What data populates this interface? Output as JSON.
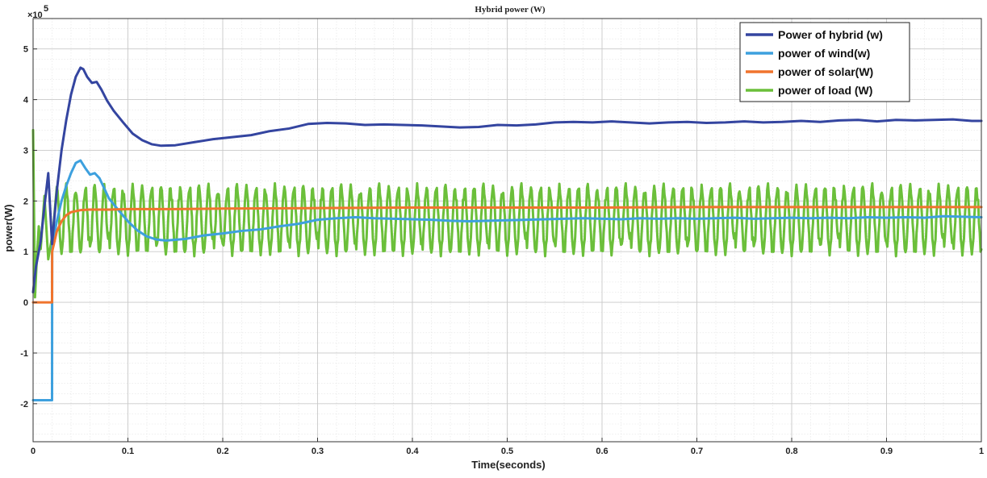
{
  "chart_data": {
    "type": "line",
    "title": "Hybrid power (W)",
    "xlabel": "Time(seconds)",
    "ylabel": "power(W)",
    "y_exponent_label": "×10",
    "y_exponent_power": "5",
    "xlim": [
      0,
      1
    ],
    "ylim": [
      -2.75,
      5.6
    ],
    "x_ticks": [
      0,
      0.1,
      0.2,
      0.3,
      0.4,
      0.5,
      0.6,
      0.7,
      0.8,
      0.9,
      1
    ],
    "x_tick_labels": [
      "0",
      "0.1",
      "0.2",
      "0.3",
      "0.4",
      "0.5",
      "0.6",
      "0.7",
      "0.8",
      "0.9",
      "1"
    ],
    "y_ticks": [
      -2,
      -1,
      0,
      1,
      2,
      3,
      4,
      5
    ],
    "y_tick_labels": [
      "-2",
      "-1",
      "0",
      "1",
      "2",
      "3",
      "4",
      "5"
    ],
    "grid": true,
    "minor_grid": true,
    "legend_position": "top-right",
    "series": [
      {
        "name": "Power of hybrid (w)",
        "color": "#3445a0",
        "points": [
          [
            0,
            0.2
          ],
          [
            0.003,
            0.7
          ],
          [
            0.008,
            1.2
          ],
          [
            0.012,
            1.9
          ],
          [
            0.016,
            2.55
          ],
          [
            0.02,
            1.15
          ],
          [
            0.025,
            2.2
          ],
          [
            0.03,
            3.0
          ],
          [
            0.035,
            3.6
          ],
          [
            0.04,
            4.1
          ],
          [
            0.045,
            4.45
          ],
          [
            0.05,
            4.63
          ],
          [
            0.053,
            4.6
          ],
          [
            0.057,
            4.45
          ],
          [
            0.062,
            4.33
          ],
          [
            0.067,
            4.35
          ],
          [
            0.072,
            4.2
          ],
          [
            0.078,
            3.98
          ],
          [
            0.085,
            3.78
          ],
          [
            0.095,
            3.55
          ],
          [
            0.105,
            3.33
          ],
          [
            0.115,
            3.2
          ],
          [
            0.125,
            3.12
          ],
          [
            0.135,
            3.09
          ],
          [
            0.15,
            3.1
          ],
          [
            0.17,
            3.16
          ],
          [
            0.19,
            3.22
          ],
          [
            0.21,
            3.26
          ],
          [
            0.23,
            3.3
          ],
          [
            0.25,
            3.38
          ],
          [
            0.27,
            3.43
          ],
          [
            0.29,
            3.52
          ],
          [
            0.31,
            3.54
          ],
          [
            0.33,
            3.53
          ],
          [
            0.35,
            3.5
          ],
          [
            0.37,
            3.51
          ],
          [
            0.39,
            3.5
          ],
          [
            0.41,
            3.49
          ],
          [
            0.43,
            3.47
          ],
          [
            0.45,
            3.45
          ],
          [
            0.47,
            3.46
          ],
          [
            0.49,
            3.5
          ],
          [
            0.51,
            3.49
          ],
          [
            0.53,
            3.51
          ],
          [
            0.55,
            3.55
          ],
          [
            0.57,
            3.56
          ],
          [
            0.59,
            3.55
          ],
          [
            0.61,
            3.57
          ],
          [
            0.63,
            3.55
          ],
          [
            0.65,
            3.53
          ],
          [
            0.67,
            3.55
          ],
          [
            0.69,
            3.56
          ],
          [
            0.71,
            3.54
          ],
          [
            0.73,
            3.55
          ],
          [
            0.75,
            3.57
          ],
          [
            0.77,
            3.55
          ],
          [
            0.79,
            3.56
          ],
          [
            0.81,
            3.58
          ],
          [
            0.83,
            3.56
          ],
          [
            0.85,
            3.59
          ],
          [
            0.87,
            3.6
          ],
          [
            0.89,
            3.57
          ],
          [
            0.91,
            3.6
          ],
          [
            0.93,
            3.59
          ],
          [
            0.95,
            3.6
          ],
          [
            0.97,
            3.61
          ],
          [
            0.99,
            3.58
          ],
          [
            1.0,
            3.58
          ]
        ]
      },
      {
        "name": "power of wind(w)",
        "color": "#3da0de",
        "points": [
          [
            0,
            -1.93
          ],
          [
            0.02,
            -1.93
          ],
          [
            0.0201,
            1.1
          ],
          [
            0.025,
            1.6
          ],
          [
            0.03,
            2.0
          ],
          [
            0.035,
            2.3
          ],
          [
            0.04,
            2.55
          ],
          [
            0.045,
            2.75
          ],
          [
            0.05,
            2.8
          ],
          [
            0.055,
            2.65
          ],
          [
            0.06,
            2.52
          ],
          [
            0.065,
            2.55
          ],
          [
            0.07,
            2.45
          ],
          [
            0.075,
            2.25
          ],
          [
            0.08,
            2.05
          ],
          [
            0.09,
            1.82
          ],
          [
            0.1,
            1.6
          ],
          [
            0.11,
            1.42
          ],
          [
            0.12,
            1.3
          ],
          [
            0.13,
            1.24
          ],
          [
            0.14,
            1.22
          ],
          [
            0.16,
            1.25
          ],
          [
            0.18,
            1.32
          ],
          [
            0.2,
            1.36
          ],
          [
            0.22,
            1.41
          ],
          [
            0.24,
            1.44
          ],
          [
            0.26,
            1.5
          ],
          [
            0.28,
            1.55
          ],
          [
            0.3,
            1.63
          ],
          [
            0.32,
            1.66
          ],
          [
            0.34,
            1.68
          ],
          [
            0.36,
            1.66
          ],
          [
            0.38,
            1.65
          ],
          [
            0.4,
            1.64
          ],
          [
            0.42,
            1.63
          ],
          [
            0.44,
            1.61
          ],
          [
            0.46,
            1.6
          ],
          [
            0.48,
            1.61
          ],
          [
            0.5,
            1.62
          ],
          [
            0.52,
            1.63
          ],
          [
            0.54,
            1.64
          ],
          [
            0.56,
            1.65
          ],
          [
            0.58,
            1.66
          ],
          [
            0.6,
            1.65
          ],
          [
            0.62,
            1.64
          ],
          [
            0.64,
            1.66
          ],
          [
            0.66,
            1.65
          ],
          [
            0.68,
            1.66
          ],
          [
            0.7,
            1.65
          ],
          [
            0.72,
            1.66
          ],
          [
            0.74,
            1.67
          ],
          [
            0.76,
            1.65
          ],
          [
            0.78,
            1.66
          ],
          [
            0.8,
            1.67
          ],
          [
            0.82,
            1.66
          ],
          [
            0.84,
            1.67
          ],
          [
            0.86,
            1.66
          ],
          [
            0.88,
            1.68
          ],
          [
            0.9,
            1.67
          ],
          [
            0.92,
            1.68
          ],
          [
            0.94,
            1.67
          ],
          [
            0.96,
            1.7
          ],
          [
            0.98,
            1.69
          ],
          [
            1.0,
            1.68
          ]
        ]
      },
      {
        "name": "power of solar(W)",
        "color": "#f0742d",
        "points": [
          [
            0,
            0
          ],
          [
            0.02,
            0
          ],
          [
            0.0201,
            1.0
          ],
          [
            0.025,
            1.4
          ],
          [
            0.03,
            1.6
          ],
          [
            0.035,
            1.72
          ],
          [
            0.04,
            1.78
          ],
          [
            0.05,
            1.82
          ],
          [
            0.06,
            1.83
          ],
          [
            0.08,
            1.83
          ],
          [
            0.1,
            1.84
          ],
          [
            0.15,
            1.84
          ],
          [
            0.2,
            1.85
          ],
          [
            0.3,
            1.86
          ],
          [
            0.4,
            1.87
          ],
          [
            0.5,
            1.87
          ],
          [
            0.6,
            1.87
          ],
          [
            0.7,
            1.88
          ],
          [
            0.8,
            1.88
          ],
          [
            0.9,
            1.88
          ],
          [
            1.0,
            1.88
          ]
        ]
      },
      {
        "name": "power of load (W)",
        "color": "#6bbf3a",
        "waveform": {
          "start_value": 3.4,
          "period": 0.01,
          "min_value": 0.98,
          "max_value": 2.28,
          "peak_value_max": 2.62
        }
      }
    ]
  }
}
